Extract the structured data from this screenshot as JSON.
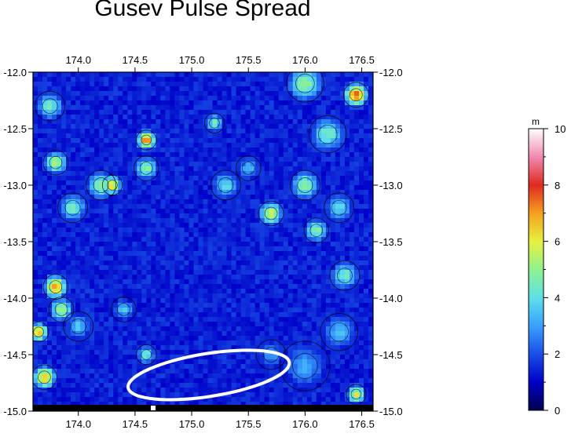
{
  "chart_data": {
    "type": "heatmap",
    "title": "Gusev Pulse Spread",
    "x_ticks": [
      "174.0",
      "174.5",
      "175.0",
      "175.5",
      "176.0",
      "176.5"
    ],
    "x_tick_values": [
      174.0,
      174.5,
      175.0,
      175.5,
      176.0,
      176.5
    ],
    "y_ticks": [
      "-12.0",
      "-12.5",
      "-13.0",
      "-13.5",
      "-14.0",
      "-14.5",
      "-15.0"
    ],
    "y_tick_values": [
      -12.0,
      -12.5,
      -13.0,
      -13.5,
      -14.0,
      -14.5,
      -15.0
    ],
    "xlim": [
      173.6,
      176.6
    ],
    "ylim": [
      -15.0,
      -12.0
    ],
    "colorbar": {
      "unit": "m",
      "ticks": [
        "0",
        "2",
        "4",
        "6",
        "8",
        "10"
      ],
      "tick_values": [
        0,
        2,
        4,
        6,
        8,
        10
      ],
      "range": [
        0,
        10
      ],
      "colors": [
        "#00004d",
        "#0000c8",
        "#1a4fe6",
        "#3aa0ff",
        "#5fe0e8",
        "#8ef28e",
        "#e8f040",
        "#f5a020",
        "#e02a20",
        "#f08ab0",
        "#ffffff"
      ]
    },
    "background_level": 1.4,
    "hotspots": [
      {
        "lon": 173.75,
        "lat": -12.3,
        "value": 4.5,
        "radius": 0.12
      },
      {
        "lon": 173.8,
        "lat": -12.8,
        "value": 5.5,
        "radius": 0.1
      },
      {
        "lon": 173.95,
        "lat": -13.2,
        "value": 4.5,
        "radius": 0.12
      },
      {
        "lon": 174.2,
        "lat": -13.0,
        "value": 5.0,
        "radius": 0.12
      },
      {
        "lon": 174.3,
        "lat": -13.0,
        "value": 6.5,
        "radius": 0.08
      },
      {
        "lon": 174.6,
        "lat": -12.6,
        "value": 7.5,
        "radius": 0.08
      },
      {
        "lon": 174.6,
        "lat": -12.85,
        "value": 5.0,
        "radius": 0.1
      },
      {
        "lon": 173.8,
        "lat": -13.9,
        "value": 7.0,
        "radius": 0.1
      },
      {
        "lon": 173.85,
        "lat": -14.1,
        "value": 5.5,
        "radius": 0.1
      },
      {
        "lon": 173.65,
        "lat": -14.3,
        "value": 7.0,
        "radius": 0.08
      },
      {
        "lon": 173.7,
        "lat": -14.7,
        "value": 6.5,
        "radius": 0.1
      },
      {
        "lon": 174.0,
        "lat": -14.25,
        "value": 3.5,
        "radius": 0.12
      },
      {
        "lon": 174.4,
        "lat": -14.1,
        "value": 3.5,
        "radius": 0.1
      },
      {
        "lon": 174.6,
        "lat": -14.5,
        "value": 4.5,
        "radius": 0.08
      },
      {
        "lon": 175.2,
        "lat": -12.45,
        "value": 4.5,
        "radius": 0.08
      },
      {
        "lon": 175.3,
        "lat": -13.0,
        "value": 4.0,
        "radius": 0.12
      },
      {
        "lon": 175.5,
        "lat": -12.85,
        "value": 3.5,
        "radius": 0.1
      },
      {
        "lon": 175.7,
        "lat": -13.25,
        "value": 6.0,
        "radius": 0.1
      },
      {
        "lon": 176.0,
        "lat": -12.1,
        "value": 5.0,
        "radius": 0.15
      },
      {
        "lon": 176.45,
        "lat": -12.2,
        "value": 7.5,
        "radius": 0.1
      },
      {
        "lon": 176.2,
        "lat": -12.55,
        "value": 4.5,
        "radius": 0.15
      },
      {
        "lon": 176.0,
        "lat": -13.0,
        "value": 5.0,
        "radius": 0.12
      },
      {
        "lon": 176.3,
        "lat": -13.2,
        "value": 4.0,
        "radius": 0.12
      },
      {
        "lon": 176.1,
        "lat": -13.4,
        "value": 5.0,
        "radius": 0.1
      },
      {
        "lon": 176.35,
        "lat": -13.8,
        "value": 4.5,
        "radius": 0.12
      },
      {
        "lon": 176.3,
        "lat": -14.3,
        "value": 3.5,
        "radius": 0.15
      },
      {
        "lon": 176.0,
        "lat": -14.6,
        "value": 3.2,
        "radius": 0.2
      },
      {
        "lon": 175.7,
        "lat": -14.5,
        "value": 3.0,
        "radius": 0.12
      },
      {
        "lon": 176.45,
        "lat": -14.85,
        "value": 6.0,
        "radius": 0.08
      }
    ],
    "ellipse": {
      "center_lon": 175.15,
      "center_lat": -14.68,
      "semi_major_lon": 0.72,
      "semi_minor_lat": 0.19,
      "tilt_deg": -9,
      "color": "#ffffff"
    }
  }
}
